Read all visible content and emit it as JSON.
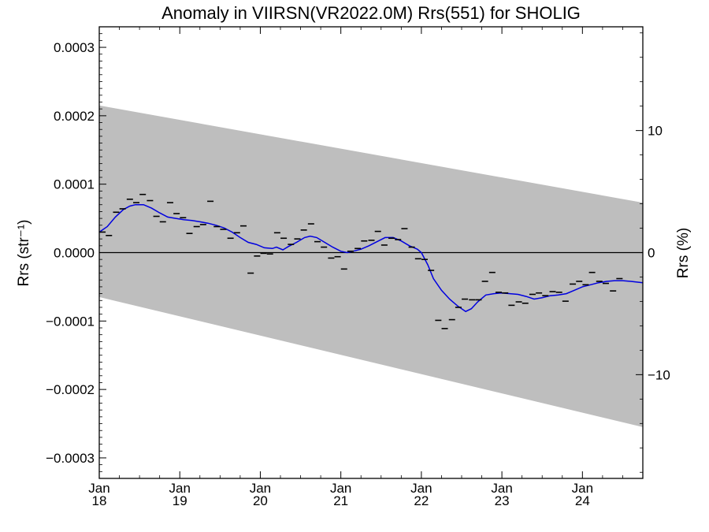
{
  "chart_data": {
    "type": "line",
    "title": "Anomaly in VIIRSN(VR2022.0M) Rrs(551) for SHOLIG",
    "ylabel": "Rrs (str⁻¹)",
    "y2label": "Rrs (%)",
    "ylim": [
      -0.00033,
      0.00033
    ],
    "y2lim": [
      -18.5,
      18.5
    ],
    "xlim": [
      2018.0,
      2024.75
    ],
    "x_ticks": [
      {
        "x": 2018,
        "line1": "Jan",
        "line2": "18"
      },
      {
        "x": 2019,
        "line1": "Jan",
        "line2": "19"
      },
      {
        "x": 2020,
        "line1": "Jan",
        "line2": "20"
      },
      {
        "x": 2021,
        "line1": "Jan",
        "line2": "21"
      },
      {
        "x": 2022,
        "line1": "Jan",
        "line2": "22"
      },
      {
        "x": 2023,
        "line1": "Jan",
        "line2": "23"
      },
      {
        "x": 2024,
        "line1": "Jan",
        "line2": "24"
      }
    ],
    "y_ticks": [
      {
        "v": 0.0003,
        "label": "0.0003"
      },
      {
        "v": 0.0002,
        "label": "0.0002"
      },
      {
        "v": 0.0001,
        "label": "0.0001"
      },
      {
        "v": 0.0,
        "label": "0.0000"
      },
      {
        "v": -0.0001,
        "label": "−0.0001"
      },
      {
        "v": -0.0002,
        "label": "−0.0002"
      },
      {
        "v": -0.0003,
        "label": "−0.0003"
      }
    ],
    "y2_ticks": [
      {
        "v": 10,
        "label": "10"
      },
      {
        "v": 0,
        "label": "0"
      },
      {
        "v": -10,
        "label": "−10"
      }
    ],
    "band": {
      "color": "#bebebe",
      "upper": [
        [
          2018.0,
          0.000215
        ],
        [
          2024.75,
          7.3e-05
        ]
      ],
      "lower": [
        [
          2018.0,
          -6.5e-05
        ],
        [
          2024.75,
          -0.000255
        ]
      ]
    },
    "zero_line": true,
    "series": [
      {
        "kind": "markers",
        "color": "#000000",
        "points": [
          [
            2018.04,
            3e-05
          ],
          [
            2018.12,
            2.5e-05
          ],
          [
            2018.21,
            5.9e-05
          ],
          [
            2018.29,
            6.4e-05
          ],
          [
            2018.38,
            7.8e-05
          ],
          [
            2018.46,
            7.3e-05
          ],
          [
            2018.54,
            8.5e-05
          ],
          [
            2018.63,
            7.6e-05
          ],
          [
            2018.71,
            5.3e-05
          ],
          [
            2018.79,
            4.5e-05
          ],
          [
            2018.88,
            7.3e-05
          ],
          [
            2018.96,
            5.7e-05
          ],
          [
            2019.04,
            5.1e-05
          ],
          [
            2019.12,
            2.8e-05
          ],
          [
            2019.21,
            3.8e-05
          ],
          [
            2019.29,
            4.1e-05
          ],
          [
            2019.38,
            7.5e-05
          ],
          [
            2019.46,
            3.8e-05
          ],
          [
            2019.54,
            3.4e-05
          ],
          [
            2019.63,
            2.1e-05
          ],
          [
            2019.71,
            2.9e-05
          ],
          [
            2019.79,
            3.9e-05
          ],
          [
            2019.88,
            -3e-05
          ],
          [
            2019.96,
            -5e-06
          ],
          [
            2020.04,
            -1e-06
          ],
          [
            2020.12,
            -2e-06
          ],
          [
            2020.21,
            2.9e-05
          ],
          [
            2020.29,
            2.1e-05
          ],
          [
            2020.38,
            1.2e-05
          ],
          [
            2020.46,
            2e-05
          ],
          [
            2020.54,
            3.3e-05
          ],
          [
            2020.63,
            4.2e-05
          ],
          [
            2020.71,
            1.6e-05
          ],
          [
            2020.79,
            8e-06
          ],
          [
            2020.88,
            -8e-06
          ],
          [
            2020.96,
            -6e-06
          ],
          [
            2021.04,
            -2.4e-05
          ],
          [
            2021.12,
            2e-06
          ],
          [
            2021.21,
            6e-06
          ],
          [
            2021.29,
            1.7e-05
          ],
          [
            2021.38,
            1.8e-05
          ],
          [
            2021.46,
            3.1e-05
          ],
          [
            2021.54,
            1.1e-05
          ],
          [
            2021.63,
            2.1e-05
          ],
          [
            2021.71,
            1.9e-05
          ],
          [
            2021.79,
            3.5e-05
          ],
          [
            2021.88,
            8e-06
          ],
          [
            2021.96,
            -9e-06
          ],
          [
            2022.04,
            -1e-05
          ],
          [
            2022.12,
            -2.6e-05
          ],
          [
            2022.21,
            -9.9e-05
          ],
          [
            2022.29,
            -0.000111
          ],
          [
            2022.38,
            -9.8e-05
          ],
          [
            2022.46,
            -8e-05
          ],
          [
            2022.54,
            -6.8e-05
          ],
          [
            2022.63,
            -6.9e-05
          ],
          [
            2022.71,
            -6.9e-05
          ],
          [
            2022.79,
            -4.2e-05
          ],
          [
            2022.88,
            -2.9e-05
          ],
          [
            2022.96,
            -5.8e-05
          ],
          [
            2023.04,
            -5.9e-05
          ],
          [
            2023.12,
            -7.7e-05
          ],
          [
            2023.21,
            -7.2e-05
          ],
          [
            2023.29,
            -7.4e-05
          ],
          [
            2023.38,
            -6.1e-05
          ],
          [
            2023.46,
            -5.9e-05
          ],
          [
            2023.54,
            -6.3e-05
          ],
          [
            2023.63,
            -5.7e-05
          ],
          [
            2023.71,
            -5.8e-05
          ],
          [
            2023.79,
            -7.1e-05
          ],
          [
            2023.88,
            -4.6e-05
          ],
          [
            2023.96,
            -4.2e-05
          ],
          [
            2024.04,
            -4.7e-05
          ],
          [
            2024.12,
            -2.9e-05
          ],
          [
            2024.21,
            -4.2e-05
          ],
          [
            2024.29,
            -4.5e-05
          ],
          [
            2024.38,
            -5.6e-05
          ],
          [
            2024.46,
            -3.8e-05
          ]
        ]
      },
      {
        "kind": "line",
        "color": "#0000e0",
        "points": [
          [
            2018.0,
            3e-05
          ],
          [
            2018.1,
            3.8e-05
          ],
          [
            2018.2,
            5.2e-05
          ],
          [
            2018.3,
            6.3e-05
          ],
          [
            2018.38,
            6.8e-05
          ],
          [
            2018.45,
            7e-05
          ],
          [
            2018.55,
            7e-05
          ],
          [
            2018.65,
            6.5e-05
          ],
          [
            2018.75,
            5.8e-05
          ],
          [
            2018.85,
            5.2e-05
          ],
          [
            2018.95,
            5e-05
          ],
          [
            2019.05,
            4.8e-05
          ],
          [
            2019.15,
            4.7e-05
          ],
          [
            2019.25,
            4.5e-05
          ],
          [
            2019.35,
            4.3e-05
          ],
          [
            2019.45,
            4e-05
          ],
          [
            2019.55,
            3.6e-05
          ],
          [
            2019.65,
            3e-05
          ],
          [
            2019.75,
            2.2e-05
          ],
          [
            2019.85,
            1.5e-05
          ],
          [
            2019.95,
            1.2e-05
          ],
          [
            2020.05,
            7e-06
          ],
          [
            2020.15,
            6e-06
          ],
          [
            2020.2,
            8e-06
          ],
          [
            2020.28,
            4e-06
          ],
          [
            2020.35,
            9e-06
          ],
          [
            2020.45,
            1.5e-05
          ],
          [
            2020.55,
            2.2e-05
          ],
          [
            2020.62,
            2.4e-05
          ],
          [
            2020.7,
            2.2e-05
          ],
          [
            2020.8,
            1.5e-05
          ],
          [
            2020.9,
            8e-06
          ],
          [
            2021.0,
            2e-06
          ],
          [
            2021.08,
            0.0
          ],
          [
            2021.15,
            2e-06
          ],
          [
            2021.25,
            5e-06
          ],
          [
            2021.35,
            1e-05
          ],
          [
            2021.45,
            1.6e-05
          ],
          [
            2021.55,
            2.2e-05
          ],
          [
            2021.65,
            2.2e-05
          ],
          [
            2021.75,
            1.7e-05
          ],
          [
            2021.85,
            1e-05
          ],
          [
            2021.95,
            5e-06
          ],
          [
            2022.0,
            0.0
          ],
          [
            2022.08,
            -1.8e-05
          ],
          [
            2022.15,
            -3.8e-05
          ],
          [
            2022.25,
            -5.5e-05
          ],
          [
            2022.35,
            -6.8e-05
          ],
          [
            2022.45,
            -7.8e-05
          ],
          [
            2022.55,
            -8.6e-05
          ],
          [
            2022.62,
            -8.2e-05
          ],
          [
            2022.7,
            -7.2e-05
          ],
          [
            2022.8,
            -6.2e-05
          ],
          [
            2022.9,
            -6e-05
          ],
          [
            2023.0,
            -5.9e-05
          ],
          [
            2023.1,
            -6e-05
          ],
          [
            2023.2,
            -6.1e-05
          ],
          [
            2023.3,
            -6.4e-05
          ],
          [
            2023.4,
            -6.8e-05
          ],
          [
            2023.5,
            -6.6e-05
          ],
          [
            2023.6,
            -6.3e-05
          ],
          [
            2023.7,
            -6.2e-05
          ],
          [
            2023.8,
            -6e-05
          ],
          [
            2023.9,
            -5.5e-05
          ],
          [
            2024.0,
            -5e-05
          ],
          [
            2024.1,
            -4.7e-05
          ],
          [
            2024.2,
            -4.4e-05
          ],
          [
            2024.3,
            -4.2e-05
          ],
          [
            2024.4,
            -4.1e-05
          ],
          [
            2024.5,
            -4.1e-05
          ],
          [
            2024.6,
            -4.2e-05
          ],
          [
            2024.75,
            -4.4e-05
          ]
        ]
      }
    ]
  }
}
